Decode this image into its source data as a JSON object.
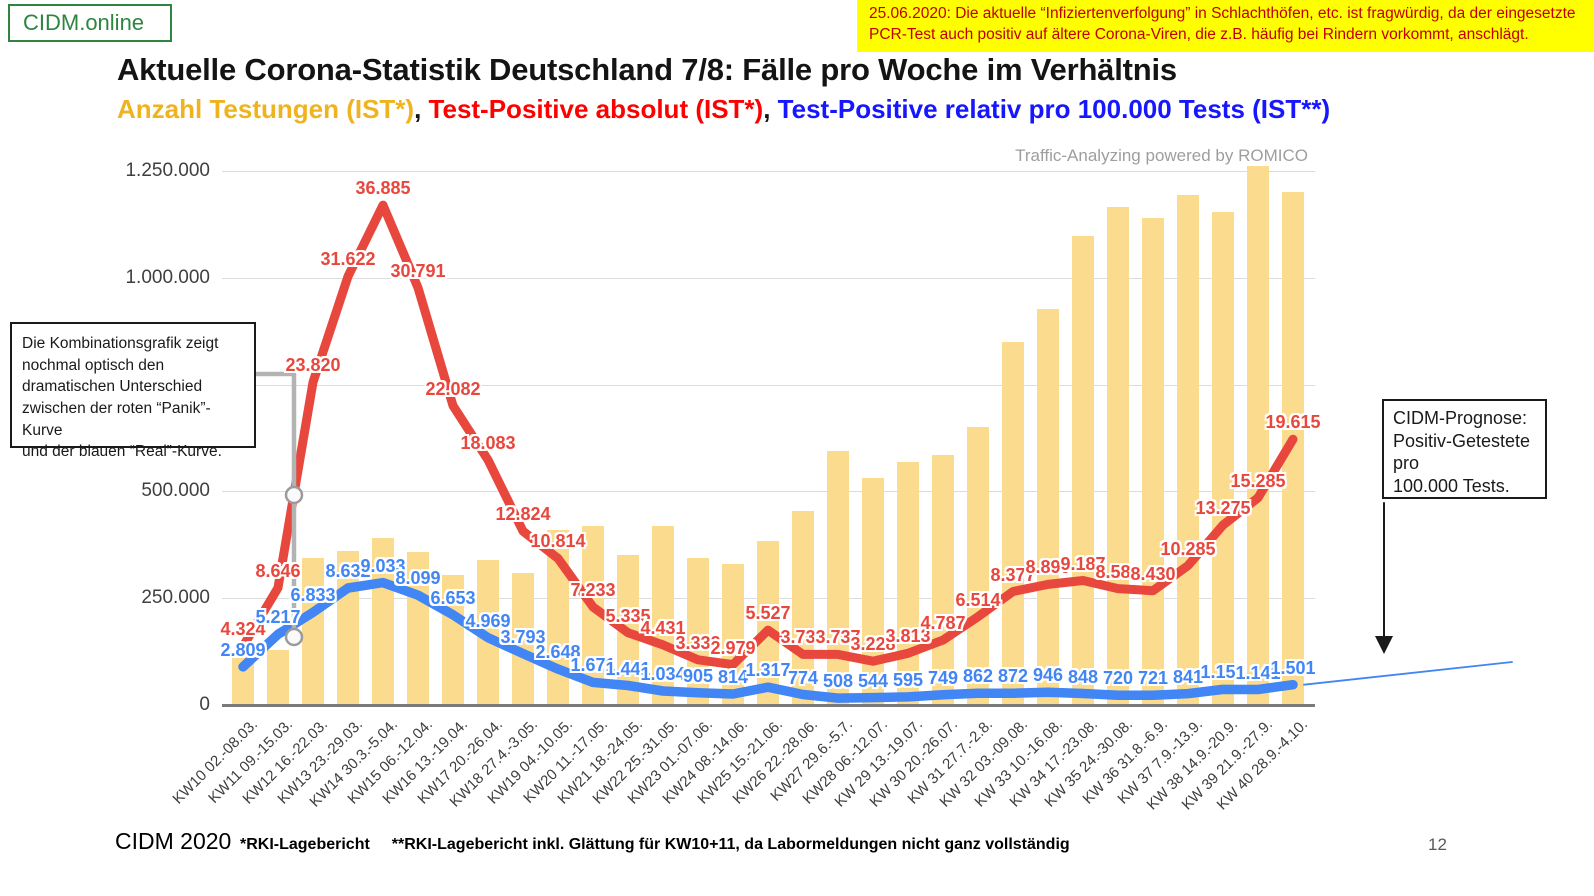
{
  "logo": {
    "text": "CIDM.online"
  },
  "banner": {
    "text": "25.06.2020: Die aktuelle “Infiziertenverfolgung” in Schlachthöfen, etc. ist fragwürdig, da der eingesetzte PCR-Test auch positiv auf ältere Corona-Viren, die z.B. häufig bei Rindern vorkommt, anschlägt."
  },
  "title": "Aktuelle Corona-Statistik Deutschland 7/8: Fälle pro Woche im Verhältnis",
  "subtitle": {
    "part1": "Anzahl Testungen (IST*)",
    "sep1": ", ",
    "part2": "Test-Positive absolut (IST*)",
    "sep2": ", ",
    "part3": "Test-Positive relativ pro 100.000 Tests (IST**)"
  },
  "watermark": "Traffic-Analyzing powered by ROMICO",
  "annotation_left": "Die Kombinationsgrafik zeigt\nnochmal optisch den\ndramatischen Unterschied\nzwischen der roten “Panik”-Kurve\nund der blauen “Real”-Kurve.",
  "annotation_right": "CIDM-Prognose:\nPositiv-Getestete\npro\n100.000 Tests.",
  "footer": {
    "brand": "CIDM 2020",
    "note1": "*RKI-Lagebericht",
    "note2": "**RKI-Lagebericht inkl. Glättung für KW10+11, da Labormeldungen nicht ganz vollständig",
    "page": "12"
  },
  "chart_data": {
    "type": "combo: bar + 2 lines",
    "title": "Aktuelle Corona-Statistik Deutschland 7/8: Fälle pro Woche im Verhältnis",
    "grid": true,
    "legend_position": "in subtitle (colored text)",
    "categories": [
      "KW10 02.-08.03.",
      "KW11 09.-15.03.",
      "KW12 16.-22.03.",
      "KW13 23.-29.03.",
      "KW14 30.3.-5.04.",
      "KW15 06.-12.04.",
      "KW16 13.-19.04.",
      "KW17 20.-26.04.",
      "KW18 27.4.-3.05.",
      "KW19 04.-10.05.",
      "KW20 11.-17.05.",
      "KW21 18.-24.05.",
      "KW22 25.-31.05.",
      "KW23 01.-07.06.",
      "KW24 08.-14.06.",
      "KW25 15.-21.06.",
      "KW26 22.-28.06.",
      "KW27 29.6.-5.7.",
      "KW28 06.-12.07.",
      "KW 29 13.-19.07.",
      "KW 30 20.-26.07.",
      "KW 31 27.7.-2.8.",
      "KW 32 03.-09.08.",
      "KW 33 10.-16.08.",
      "KW 34 17.-23.08.",
      "KW 35 24.-30.08.",
      "KW 36 31.8.-6.9.",
      "KW 37 7.9.-13.9.",
      "KW 38 14.9.-20.9.",
      "KW 39 21.9.-27.9.",
      "KW 40 28.9.-4.10."
    ],
    "left_axis": {
      "ticks": [
        "0",
        "250.000",
        "500.000",
        "750.000",
        "1.000.000",
        "1.250.000"
      ],
      "min": 0,
      "max": 1250000
    },
    "right_axis_hidden": {
      "min": 0,
      "max": 39400,
      "note": "red and blue lines drawn on unlabeled secondary scale"
    },
    "series": [
      {
        "name": "Anzahl Testungen (IST*)",
        "type": "bar",
        "axis": "left",
        "color": "#fbdb8e",
        "labels_shown": false,
        "values": [
          125000,
          130000,
          345000,
          360000,
          390000,
          358000,
          305000,
          340000,
          310000,
          410000,
          420000,
          352000,
          420000,
          345000,
          330000,
          385000,
          455000,
          595000,
          532000,
          570000,
          586000,
          650000,
          850000,
          926000,
          1098000,
          1165000,
          1140000,
          1195000,
          1155000,
          1262000,
          1200000
        ]
      },
      {
        "name": "Test-Positive absolut (IST*)",
        "type": "line",
        "axis": "right",
        "color": "#e8473d",
        "labels_shown": true,
        "values": [
          4324,
          8646,
          23820,
          31622,
          36885,
          30791,
          22082,
          18083,
          12824,
          10814,
          7233,
          5335,
          4431,
          3332,
          2979,
          5527,
          3733,
          3737,
          3228,
          3813,
          4787,
          6514,
          8377,
          8899,
          9187,
          8588,
          8430,
          10285,
          13275,
          15285,
          19615
        ]
      },
      {
        "name": "Test-Positive relativ pro 100.000 Tests (IST**)",
        "type": "line",
        "axis": "right",
        "color": "#4285f4",
        "labels_shown": true,
        "values": [
          2809,
          5217,
          6833,
          8632,
          9033,
          8099,
          6653,
          4969,
          3793,
          2648,
          1671,
          1441,
          1034,
          905,
          814,
          1317,
          774,
          508,
          544,
          595,
          749,
          862,
          872,
          946,
          848,
          720,
          721,
          841,
          1151,
          1141,
          1501
        ]
      }
    ],
    "annotations": {
      "gray_marker": "bracket from left note box to two circle markers at KW11/KW12 (Glättung KW10+11)",
      "prognosis": "thin blue line extending beyond KW40 to the right (CIDM-Prognose)",
      "arrow": "black arrow from CIDM-Prognose box down to prognosis line"
    }
  }
}
